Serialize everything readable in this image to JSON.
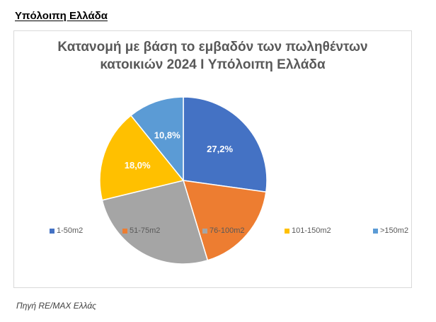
{
  "page": {
    "section_heading": "Υπόλοιπη Ελλάδα",
    "source_note": "Πηγή RE/MAX Ελλάς"
  },
  "chart_data": {
    "type": "pie",
    "title_lines": [
      "Κατανομή με βάση το εμβαδόν των πωληθέντων",
      "κατοικιών 2024 I Υπόλοιπη Ελλάδα"
    ],
    "categories": [
      "1-50m2",
      "51-75m2",
      "76-100m2",
      "101-150m2",
      ">150m2"
    ],
    "values": [
      27.2,
      18.1,
      25.9,
      18.0,
      10.8
    ],
    "data_labels": [
      "27,2%",
      "",
      "",
      "18,0%",
      "10,8%"
    ],
    "colors": [
      "#4472C4",
      "#ED7D31",
      "#A5A5A5",
      "#FFC000",
      "#5B9BD5"
    ],
    "start_angle_deg": 0,
    "direction": "clockwise",
    "legend_position": "bottom"
  }
}
